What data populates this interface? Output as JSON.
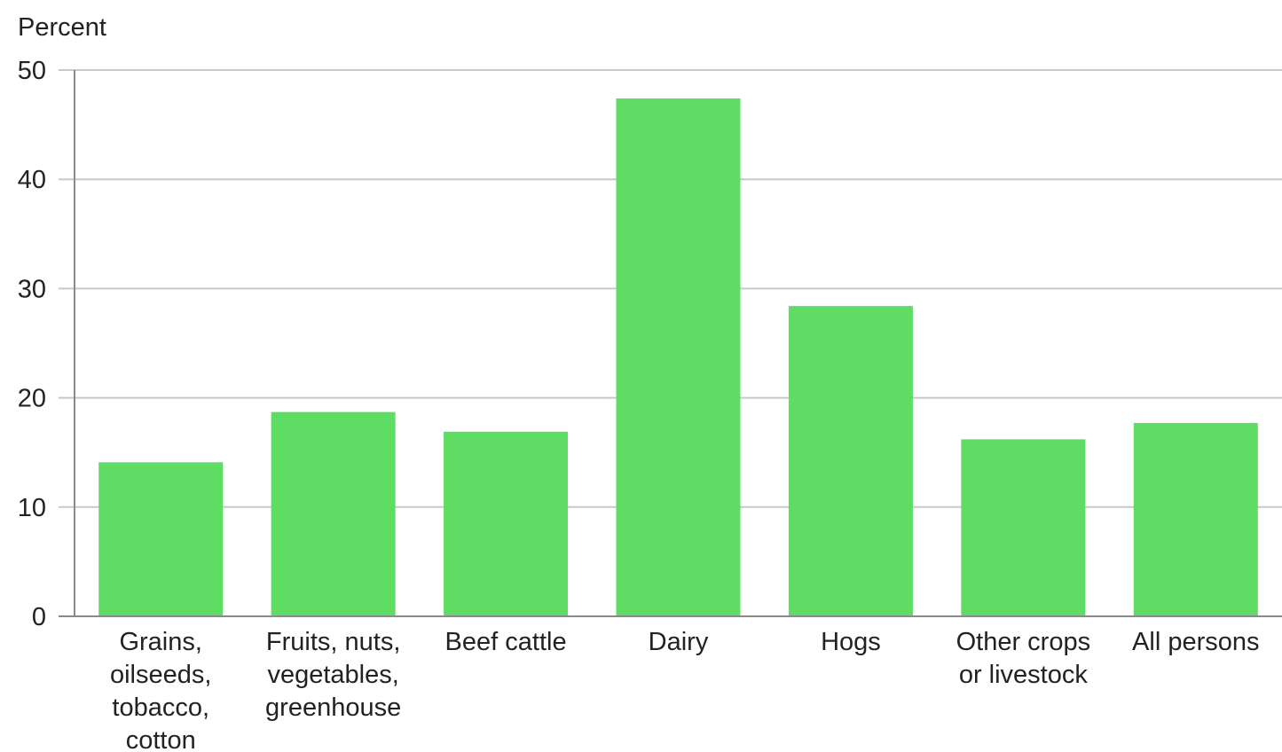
{
  "chart_data": {
    "type": "bar",
    "title": "",
    "ylabel": "Percent",
    "xlabel": "",
    "ylim": [
      0,
      50
    ],
    "yticks": [
      0,
      10,
      20,
      30,
      40,
      50
    ],
    "grid": true,
    "bar_color": "#5fdc64",
    "categories": [
      [
        "Grains,",
        "oilseeds,",
        "tobacco,",
        "cotton"
      ],
      [
        "Fruits, nuts,",
        "vegetables,",
        "greenhouse"
      ],
      [
        "Beef cattle"
      ],
      [
        "Dairy"
      ],
      [
        "Hogs"
      ],
      [
        "Other crops",
        "or livestock"
      ],
      [
        "All persons"
      ]
    ],
    "values": [
      14.1,
      18.7,
      16.9,
      47.4,
      28.4,
      16.2,
      17.7
    ]
  }
}
